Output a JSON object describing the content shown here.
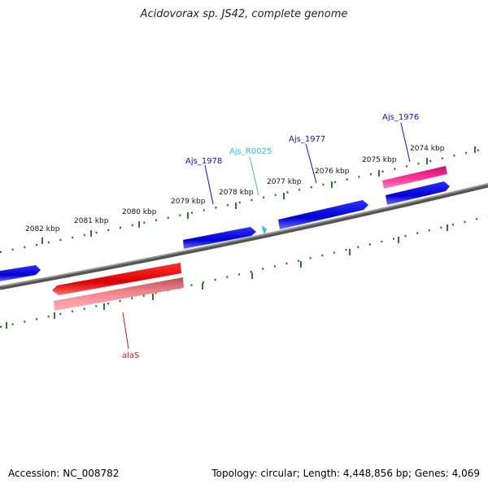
{
  "title": "Acidovorax sp. JS42, complete genome",
  "footer": {
    "accession": "Accession: NC_008782",
    "summary": "Topology: circular; Length: 4,448,856 bp; Genes: 4,069"
  },
  "colors": {
    "forward_gene": "#0a0ad8",
    "reverse_gene": "#e81010",
    "reverse_cds": "#f07b80",
    "forward_cds": "#e0308a",
    "rna": "#33bde0",
    "backbone": "#7a7a7a",
    "ticks": "#2a7a2a"
  },
  "ticks": {
    "labels": [
      "2074 kbp",
      "2075 kbp",
      "2076 kbp",
      "2077 kbp",
      "2078 kbp",
      "2079 kbp",
      "2080 kbp",
      "2081 kbp",
      "2082 kbp"
    ]
  },
  "genes": {
    "ajs_1976": "Ajs_1976",
    "ajs_1977": "Ajs_1977",
    "ajs_r0025": "Ajs_R0025",
    "ajs_1978": "Ajs_1978",
    "alas": "alaS"
  }
}
